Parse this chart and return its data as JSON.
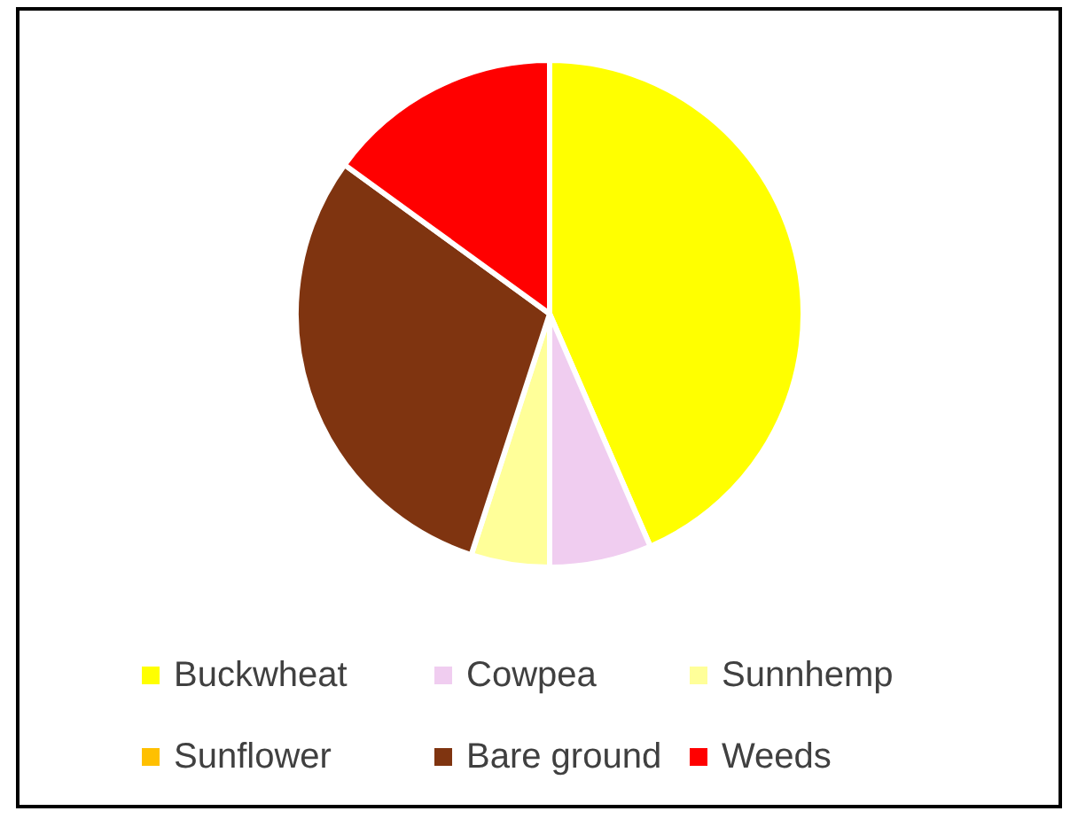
{
  "chart_data": {
    "type": "pie",
    "categories": [
      "Buckwheat",
      "Cowpea",
      "Sunnhemp",
      "Sunflower",
      "Bare ground",
      "Weeds"
    ],
    "values": [
      43.5,
      6.5,
      5,
      0,
      30,
      15
    ],
    "colors": [
      "#ffff00",
      "#f0cdf0",
      "#ffff99",
      "#ffc000",
      "#7f3410",
      "#ff0000"
    ],
    "legend": "bottom"
  }
}
